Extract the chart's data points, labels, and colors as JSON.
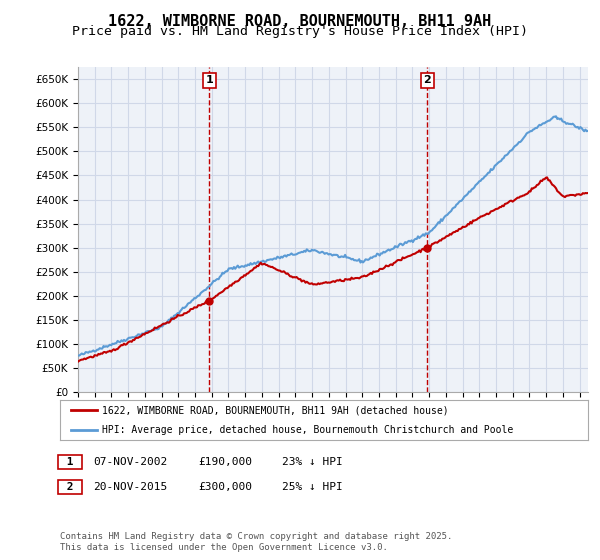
{
  "title": "1622, WIMBORNE ROAD, BOURNEMOUTH, BH11 9AH",
  "subtitle": "Price paid vs. HM Land Registry's House Price Index (HPI)",
  "xlabel": "",
  "ylabel": "",
  "ylim": [
    0,
    675000
  ],
  "xlim_start": 1995.0,
  "xlim_end": 2025.5,
  "yticks": [
    0,
    50000,
    100000,
    150000,
    200000,
    250000,
    300000,
    350000,
    400000,
    450000,
    500000,
    550000,
    600000,
    650000
  ],
  "ytick_labels": [
    "£0",
    "£50K",
    "£100K",
    "£150K",
    "£200K",
    "£250K",
    "£300K",
    "£350K",
    "£400K",
    "£450K",
    "£500K",
    "£550K",
    "£600K",
    "£650K"
  ],
  "hpi_color": "#5b9bd5",
  "price_color": "#c00000",
  "vline_color": "#c00000",
  "grid_color": "#d0d8e8",
  "background_color": "#ffffff",
  "plot_background": "#eef2f8",
  "marker1_x": 2002.86,
  "marker1_y": 190000,
  "marker2_x": 2015.9,
  "marker2_y": 300000,
  "marker1_label": "1",
  "marker2_label": "2",
  "legend_line1": "1622, WIMBORNE ROAD, BOURNEMOUTH, BH11 9AH (detached house)",
  "legend_line2": "HPI: Average price, detached house, Bournemouth Christchurch and Poole",
  "table_row1": "1    07-NOV-2002    £190,000    23% ↓ HPI",
  "table_row2": "2    20-NOV-2015    £300,000    25% ↓ HPI",
  "footnote": "Contains HM Land Registry data © Crown copyright and database right 2025.\nThis data is licensed under the Open Government Licence v3.0.",
  "title_fontsize": 11,
  "subtitle_fontsize": 9.5
}
